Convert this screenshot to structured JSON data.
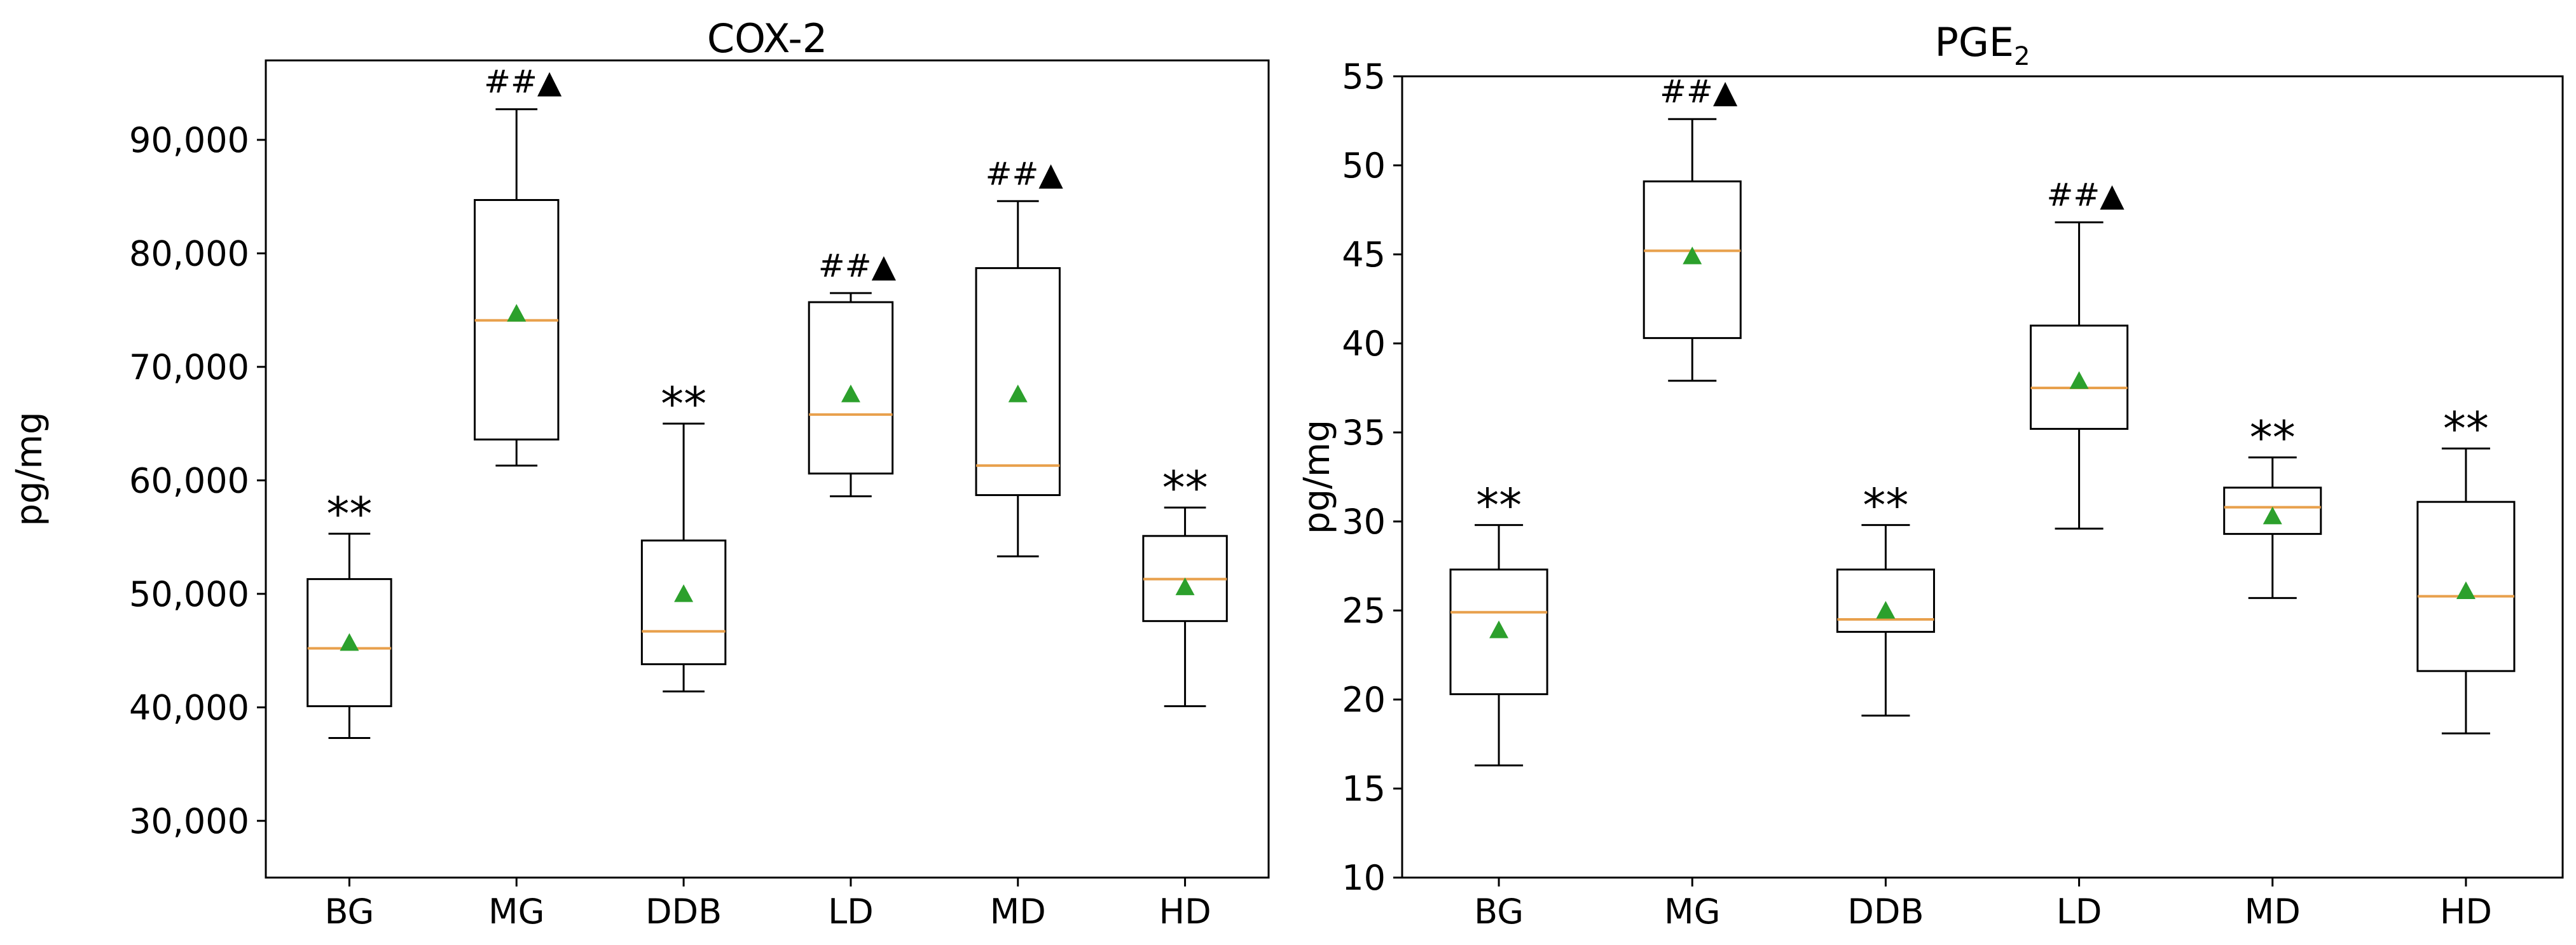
{
  "chart_data": [
    {
      "type": "box",
      "title": "COX-2",
      "title_main": "COX-2",
      "title_sub": "",
      "xlabel": "",
      "ylabel": "pg/mg",
      "ylim": [
        25000,
        97000
      ],
      "yticks": [
        30000,
        40000,
        50000,
        60000,
        70000,
        80000,
        90000
      ],
      "ytick_labels": [
        "30,000",
        "40,000",
        "50,000",
        "60,000",
        "70,000",
        "80,000",
        "90,000"
      ],
      "categories": [
        "BG",
        "MG",
        "DDB",
        "LD",
        "MD",
        "HD"
      ],
      "boxes": [
        {
          "group": "BG",
          "whisker_low": 37300,
          "q1": 40100,
          "median": 45200,
          "q3": 51300,
          "whisker_high": 55300,
          "mean": 45700,
          "annotation": "**"
        },
        {
          "group": "MG",
          "whisker_low": 61300,
          "q1": 63600,
          "median": 74100,
          "q3": 84700,
          "whisker_high": 92700,
          "mean": 74700,
          "annotation": "##▲"
        },
        {
          "group": "DDB",
          "whisker_low": 41400,
          "q1": 43800,
          "median": 46700,
          "q3": 54700,
          "whisker_high": 65000,
          "mean": 50000,
          "annotation": "**"
        },
        {
          "group": "LD",
          "whisker_low": 58600,
          "q1": 60600,
          "median": 65800,
          "q3": 75700,
          "whisker_high": 76500,
          "mean": 67600,
          "annotation": "##▲"
        },
        {
          "group": "MD",
          "whisker_low": 53300,
          "q1": 58700,
          "median": 61300,
          "q3": 78700,
          "whisker_high": 84600,
          "mean": 67600,
          "annotation": "##▲"
        },
        {
          "group": "HD",
          "whisker_low": 40100,
          "q1": 47600,
          "median": 51300,
          "q3": 55100,
          "whisker_high": 57600,
          "mean": 50600,
          "annotation": "**"
        }
      ]
    },
    {
      "type": "box",
      "title": "PGE2",
      "title_main": "PGE",
      "title_sub": "2",
      "xlabel": "",
      "ylabel": "pg/mg",
      "ylim": [
        10,
        55
      ],
      "yticks": [
        10,
        15,
        20,
        25,
        30,
        35,
        40,
        45,
        50,
        55
      ],
      "ytick_labels": [
        "10",
        "15",
        "20",
        "25",
        "30",
        "35",
        "40",
        "45",
        "50",
        "55"
      ],
      "categories": [
        "BG",
        "MG",
        "DDB",
        "LD",
        "MD",
        "HD"
      ],
      "boxes": [
        {
          "group": "BG",
          "whisker_low": 16.3,
          "q1": 20.3,
          "median": 24.9,
          "q3": 27.3,
          "whisker_high": 29.8,
          "mean": 23.9,
          "annotation": "**"
        },
        {
          "group": "MG",
          "whisker_low": 37.9,
          "q1": 40.3,
          "median": 45.2,
          "q3": 49.1,
          "whisker_high": 52.6,
          "mean": 44.9,
          "annotation": "##▲"
        },
        {
          "group": "DDB",
          "whisker_low": 19.1,
          "q1": 23.8,
          "median": 24.5,
          "q3": 27.3,
          "whisker_high": 29.8,
          "mean": 25.0,
          "annotation": "**"
        },
        {
          "group": "LD",
          "whisker_low": 29.6,
          "q1": 35.2,
          "median": 37.5,
          "q3": 41.0,
          "whisker_high": 46.8,
          "mean": 37.9,
          "annotation": "##▲"
        },
        {
          "group": "MD",
          "whisker_low": 25.7,
          "q1": 29.3,
          "median": 30.8,
          "q3": 31.9,
          "whisker_high": 33.6,
          "mean": 30.3,
          "annotation": "**"
        },
        {
          "group": "HD",
          "whisker_low": 18.1,
          "q1": 21.6,
          "median": 25.8,
          "q3": 31.1,
          "whisker_high": 34.1,
          "mean": 26.1,
          "annotation": "**"
        }
      ]
    }
  ],
  "colors": {
    "box": "#000000",
    "median": "#e8a04c",
    "mean_marker": "#2ca02c",
    "text": "#000000"
  }
}
